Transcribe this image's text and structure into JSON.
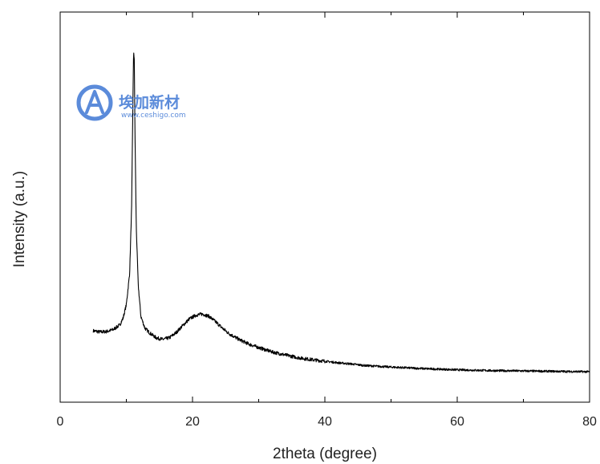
{
  "chart_data": {
    "type": "line",
    "title": "",
    "xlabel": "2theta (degree)",
    "ylabel": "Intensity (a.u.)",
    "xlim": [
      0,
      80
    ],
    "ylim": [
      0,
      100
    ],
    "x_ticks": [
      0,
      20,
      40,
      60,
      80
    ],
    "x_tick_labels": [
      "0",
      "20",
      "40",
      "60",
      "80"
    ],
    "y_ticks": [],
    "grid": false,
    "legend": "none",
    "line_color": "#000000",
    "series": [
      {
        "x": [
          5,
          6,
          7,
          8,
          9,
          9.5,
          10,
          10.5,
          10.8,
          11,
          11.1,
          11.2,
          11.3,
          11.5,
          11.8,
          12.2,
          12.8,
          13.5,
          14.5,
          15.5,
          16.5,
          17.5,
          18.5,
          19.5,
          20.5,
          21.5,
          22.5,
          23.5,
          24.5,
          25.5,
          27,
          28.5,
          30,
          32,
          34,
          36,
          38,
          40,
          42,
          44,
          46,
          48,
          50,
          55,
          60,
          65,
          70,
          75,
          80
        ],
        "y": [
          18.3,
          18.0,
          18.1,
          18.6,
          19.8,
          21.5,
          25,
          33,
          50,
          78,
          90,
          88,
          70,
          45,
          30,
          22,
          19,
          17.8,
          16.5,
          16.1,
          16.5,
          17.8,
          19.6,
          21.3,
          22.3,
          22.6,
          22.0,
          20.6,
          19.0,
          17.6,
          16.1,
          14.9,
          14.0,
          12.9,
          12.1,
          11.4,
          10.9,
          10.5,
          10.1,
          9.8,
          9.4,
          9.2,
          9.0,
          8.6,
          8.3,
          8.1,
          8.0,
          7.9,
          7.8
        ]
      }
    ]
  },
  "watermark": {
    "brand": "埃加新材",
    "url": "www.ceshigo.com",
    "color": "#4a7fd6",
    "logo_icon": "circle-letter-a-logo"
  }
}
